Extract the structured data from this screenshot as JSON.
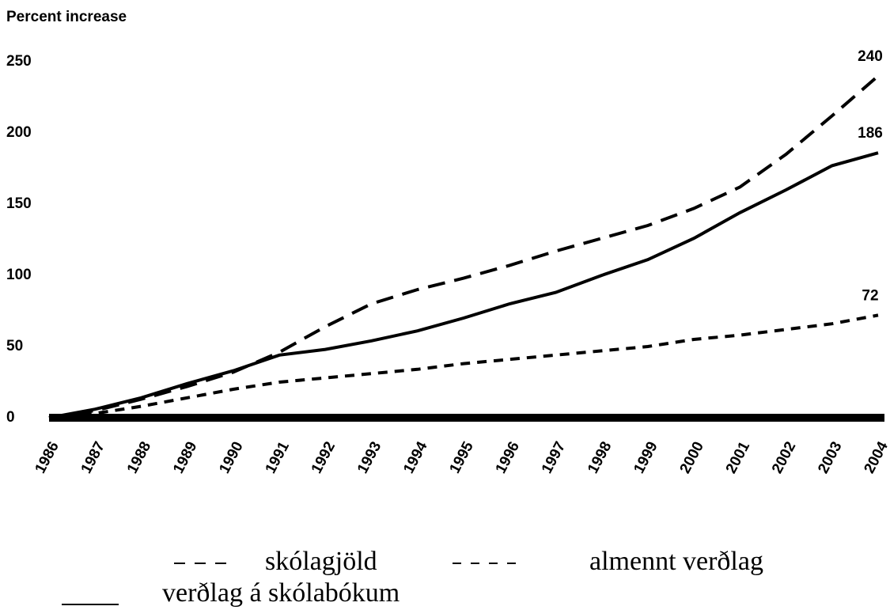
{
  "chart_data": {
    "type": "line",
    "title": "Percent increase",
    "x": [
      1986,
      1987,
      1988,
      1989,
      1990,
      1991,
      1992,
      1993,
      1994,
      1995,
      1996,
      1997,
      1998,
      1999,
      2000,
      2001,
      2002,
      2003,
      2004
    ],
    "series": [
      {
        "name": "skólagjöld",
        "color": "#000000",
        "dash": "long",
        "values": [
          0,
          5,
          13,
          22,
          32,
          46,
          64,
          80,
          90,
          98,
          107,
          117,
          126,
          135,
          147,
          162,
          185,
          212,
          240
        ]
      },
      {
        "name": "almennt verðlag",
        "color": "#000000",
        "dash": "short",
        "values": [
          0,
          3,
          8,
          14,
          20,
          25,
          28,
          31,
          34,
          38,
          41,
          44,
          47,
          50,
          55,
          58,
          62,
          66,
          72
        ]
      },
      {
        "name": "verðlag á skólabókum",
        "color": "#000000",
        "dash": "solid",
        "values": [
          0,
          6,
          14,
          24,
          33,
          44,
          48,
          54,
          61,
          70,
          80,
          88,
          100,
          111,
          126,
          144,
          160,
          177,
          186
        ]
      }
    ],
    "xlim": [
      1986,
      2004
    ],
    "ylim": [
      0,
      250
    ],
    "yticks": [
      0,
      50,
      100,
      150,
      200,
      250
    ],
    "grid": false
  }
}
